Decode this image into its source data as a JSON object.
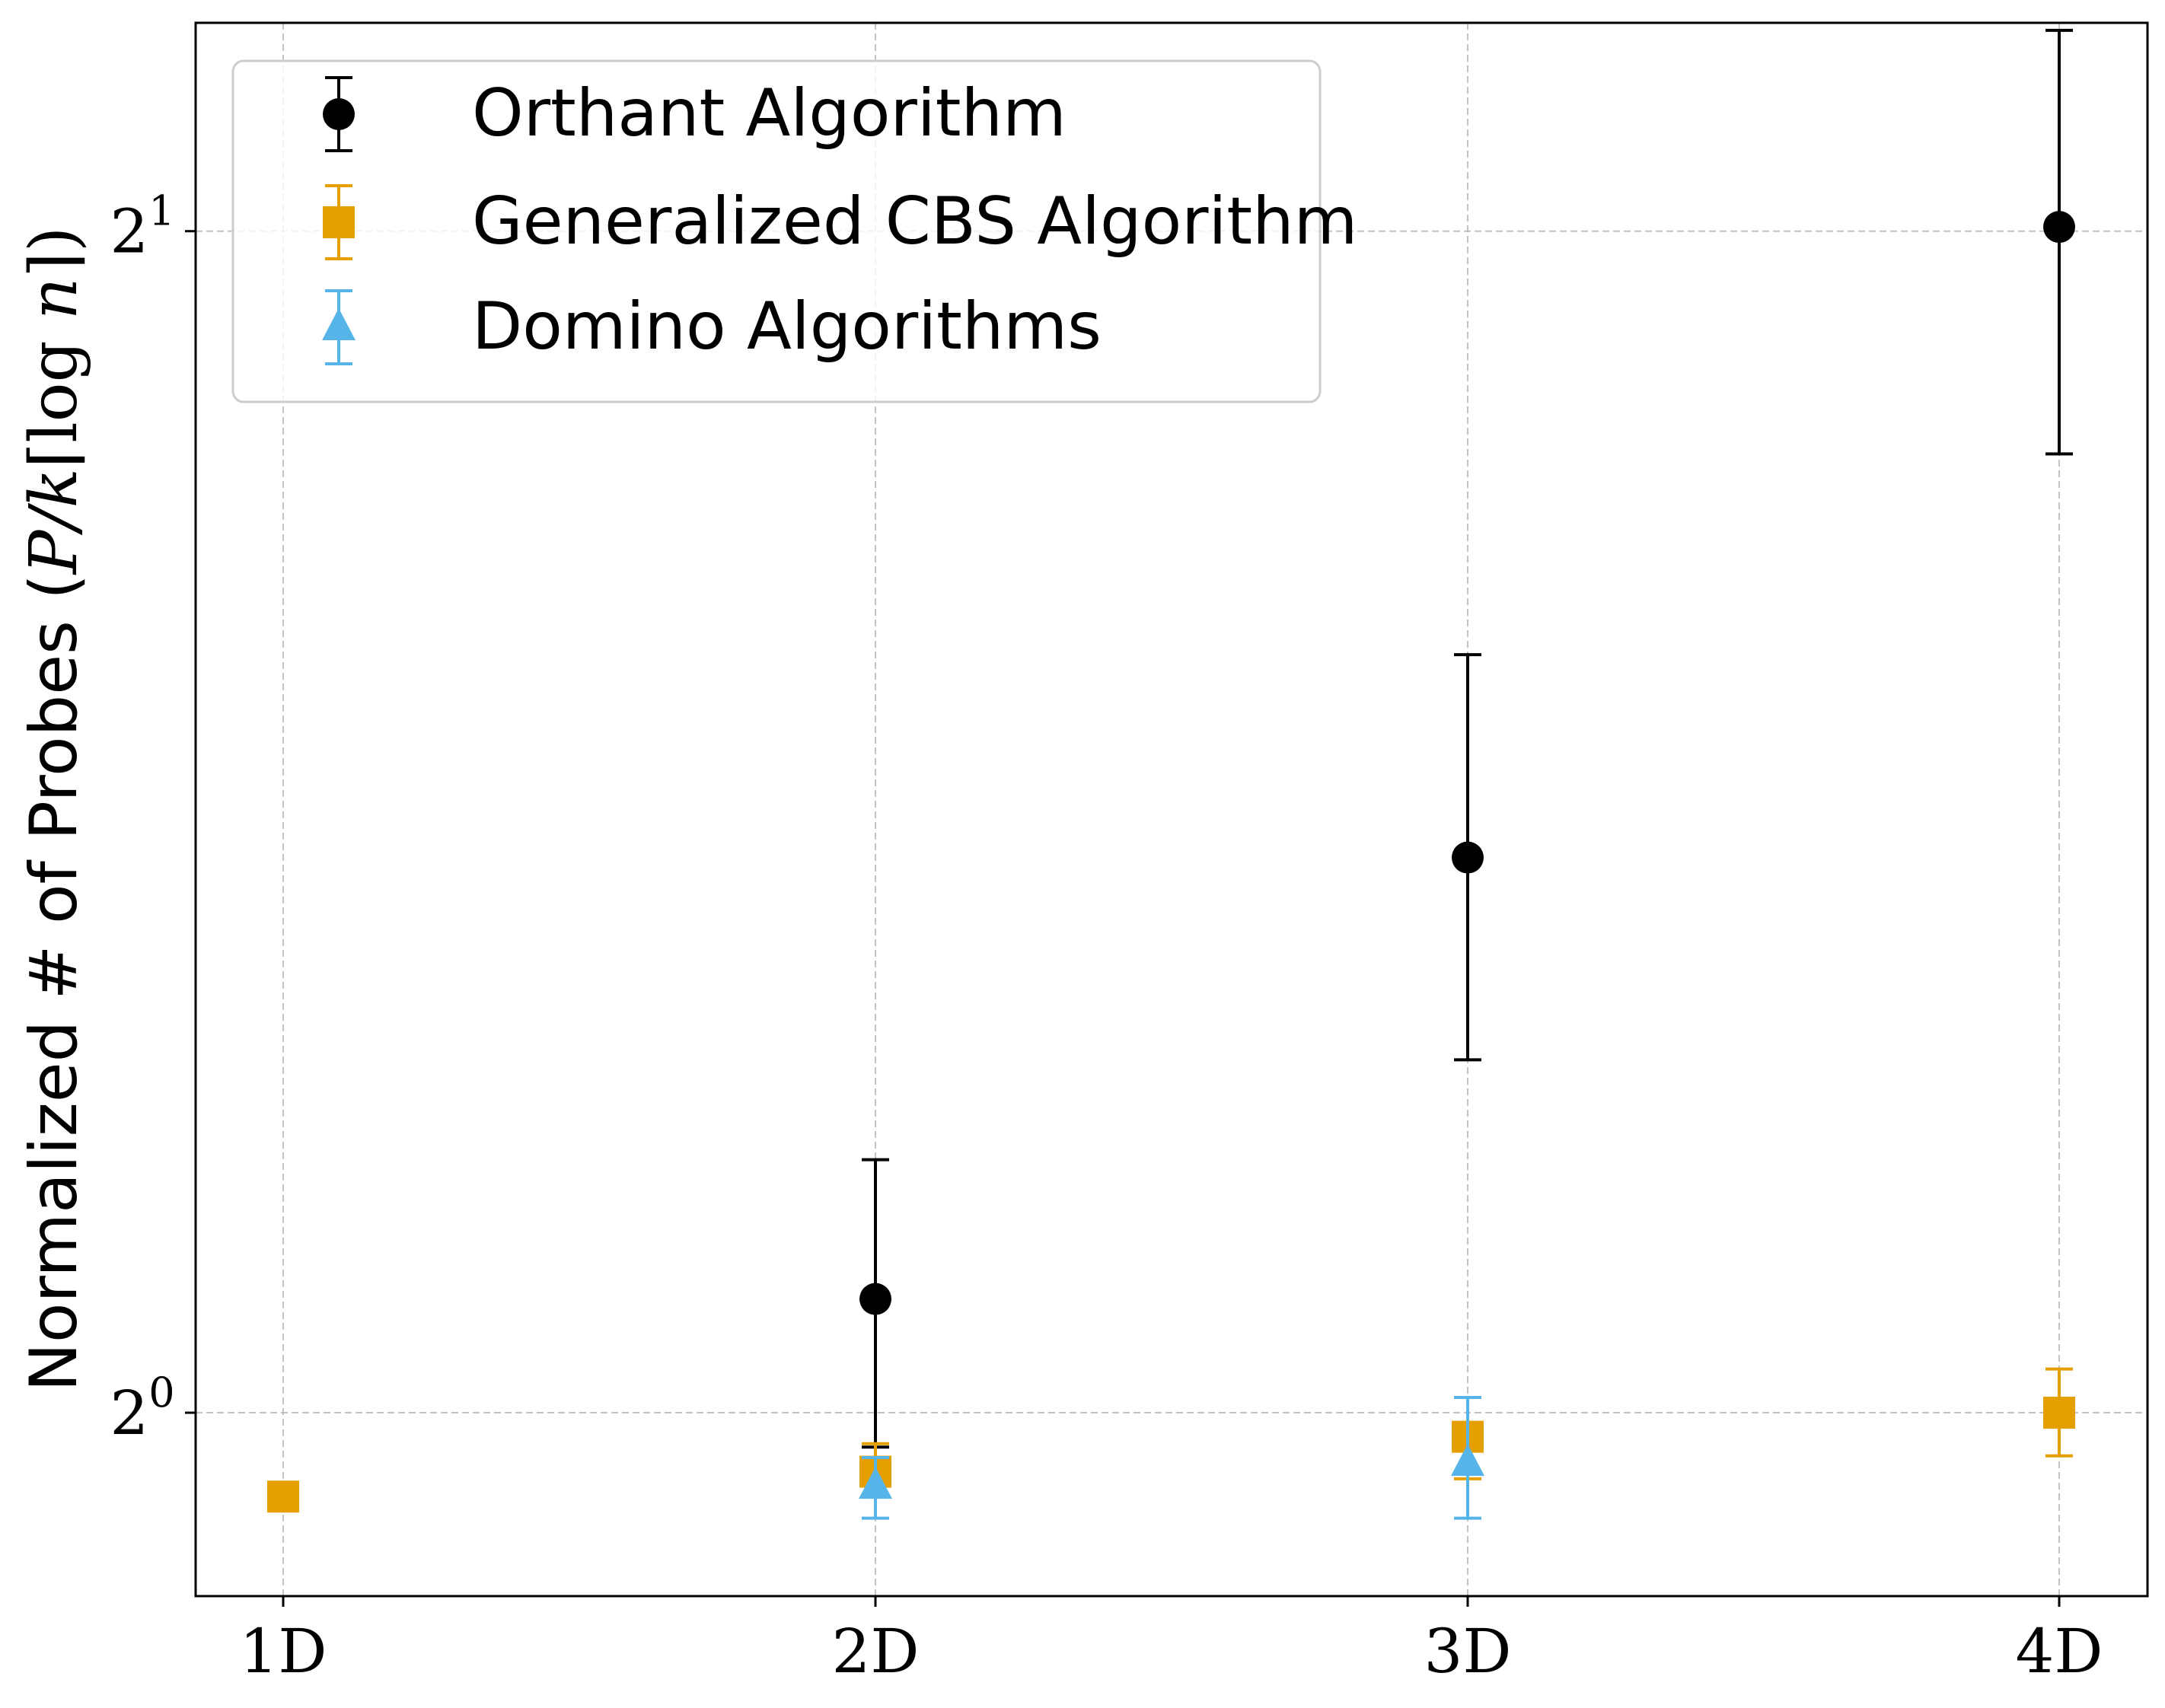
{
  "chart_data": {
    "type": "scatter",
    "categories": [
      "1D",
      "2D",
      "3D",
      "4D"
    ],
    "yscale": "log2",
    "ylim": [
      0.898,
      2.26
    ],
    "yticks": [
      {
        "value": 1,
        "base": "2",
        "exp": "0"
      },
      {
        "value": 2,
        "base": "2",
        "exp": "1"
      }
    ],
    "ylabel": {
      "text": "Normalized # of Probes (",
      "math1": "P/k",
      "math2": "⌈log ",
      "math3": "n",
      "math4": "⌉)"
    },
    "xlabel": "",
    "title": "",
    "grid": true,
    "legend_position": "upper-left",
    "series": [
      {
        "name": "Orthant Algorithm",
        "marker": "circle",
        "color": "#000000",
        "points": [
          {
            "x": "2D",
            "y": 1.069,
            "lo": 0.98,
            "hi": 1.16
          },
          {
            "x": "3D",
            "y": 1.385,
            "lo": 1.23,
            "hi": 1.56
          },
          {
            "x": "4D",
            "y": 2.005,
            "lo": 1.755,
            "hi": 2.25
          }
        ]
      },
      {
        "name": "Generalized CBS Algorithm",
        "marker": "square",
        "color": "#E69F00",
        "points": [
          {
            "x": "1D",
            "y": 0.952,
            "lo": 0.952,
            "hi": 0.952
          },
          {
            "x": "2D",
            "y": 0.966,
            "lo": 0.952,
            "hi": 0.982
          },
          {
            "x": "3D",
            "y": 0.986,
            "lo": 0.962,
            "hi": 1.009
          },
          {
            "x": "4D",
            "y": 1.0,
            "lo": 0.975,
            "hi": 1.026
          }
        ]
      },
      {
        "name": "Domino Algorithms",
        "marker": "triangle",
        "color": "#56B4E9",
        "points": [
          {
            "x": "2D",
            "y": 0.958,
            "lo": 0.94,
            "hi": 0.974
          },
          {
            "x": "3D",
            "y": 0.971,
            "lo": 0.94,
            "hi": 1.009
          }
        ]
      }
    ]
  }
}
